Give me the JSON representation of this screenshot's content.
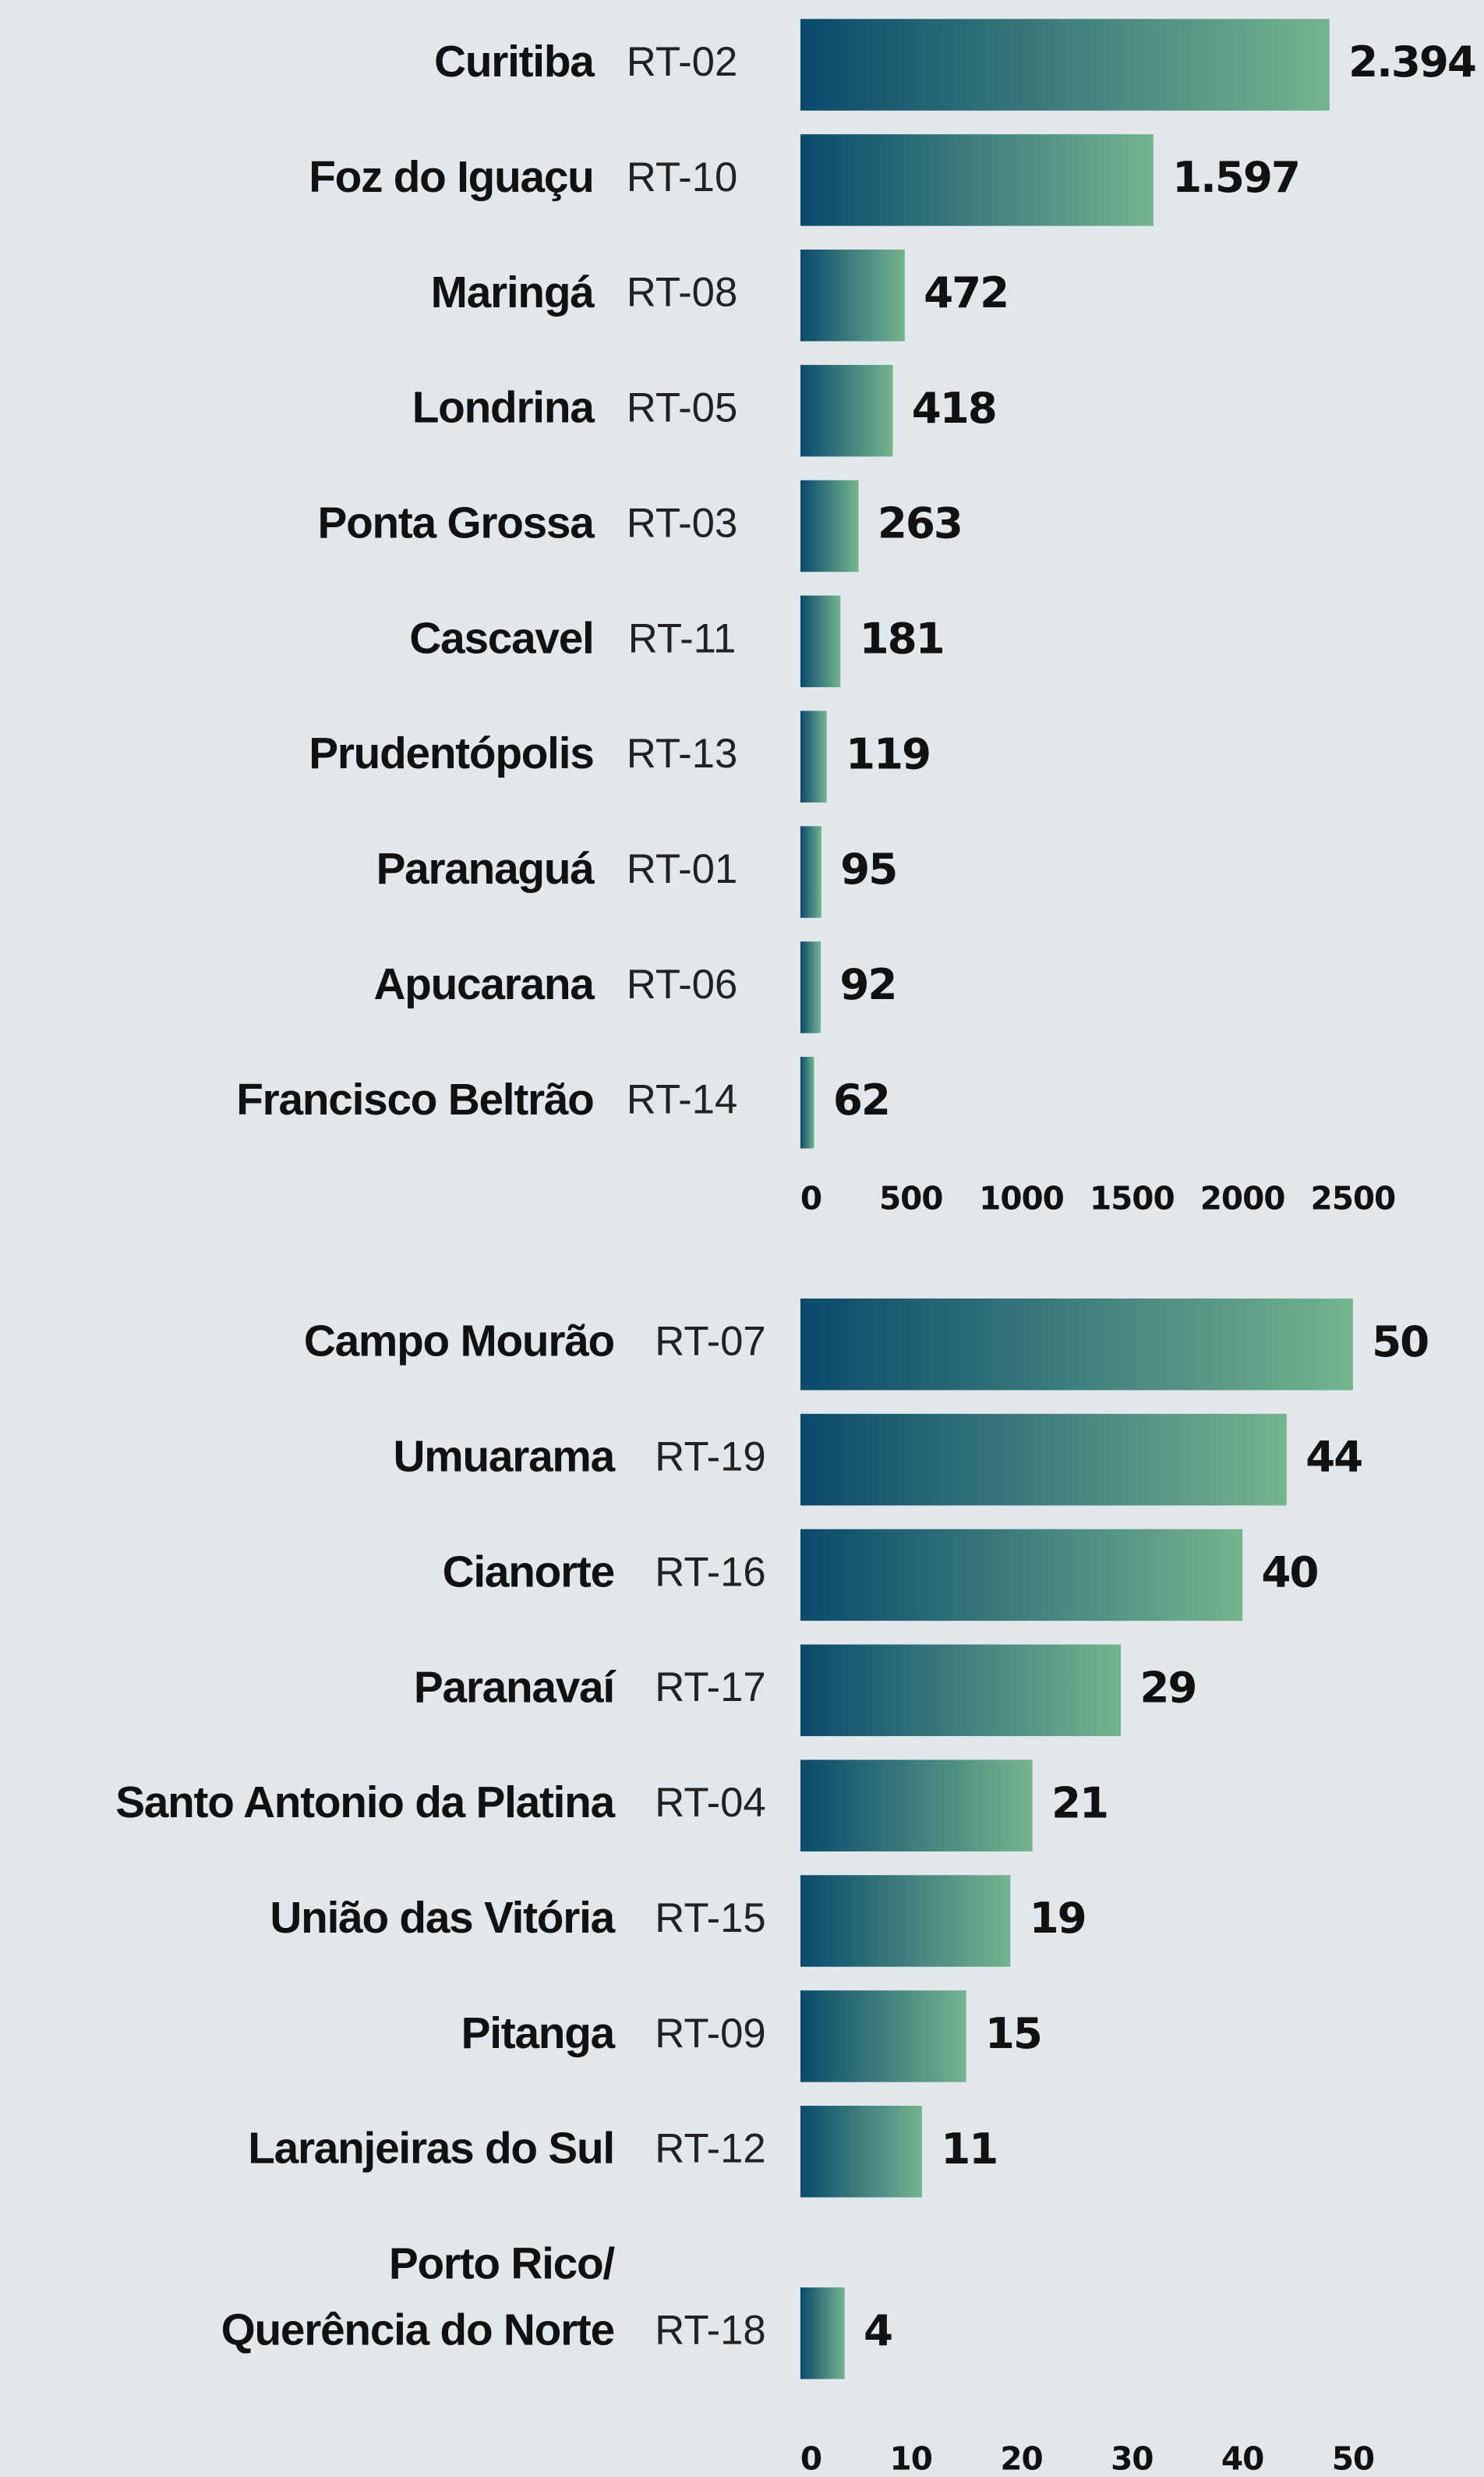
{
  "chart_data": [
    {
      "type": "bar",
      "orientation": "horizontal",
      "categories": [
        "Curitiba",
        "Foz do Iguaçu",
        "Maringá",
        "Londrina",
        "Ponta Grossa",
        "Cascavel",
        "Prudentópolis",
        "Paranaguá",
        "Apucarana",
        "Francisco Beltrão"
      ],
      "codes": [
        "RT-02",
        "RT-10",
        "RT-08",
        "RT-05",
        "RT-03",
        "RT-11",
        "RT-13",
        "RT-01",
        "RT-06",
        "RT-14"
      ],
      "values": [
        2394,
        1597,
        472,
        418,
        263,
        181,
        119,
        95,
        92,
        62
      ],
      "value_labels": [
        "2.394",
        "1.597",
        "472",
        "418",
        "263",
        "181",
        "119",
        "95",
        "92",
        "62"
      ],
      "color": [
        "#0a4a6b",
        "#74b48f"
      ],
      "xlim": [
        0,
        2500
      ],
      "xticks": [
        0,
        500,
        1000,
        1500,
        2000,
        2500
      ]
    },
    {
      "type": "bar",
      "orientation": "horizontal",
      "categories": [
        "Campo Mourão",
        "Umuarama",
        "Cianorte",
        "Paranavaí",
        "Santo Antonio da Platina",
        "União das Vitória",
        "Pitanga",
        "Laranjeiras do Sul",
        "Porto Rico/\nQuerência do Norte"
      ],
      "codes": [
        "RT-07",
        "RT-19",
        "RT-16",
        "RT-17",
        "RT-04",
        "RT-15",
        "RT-09",
        "RT-12",
        "RT-18"
      ],
      "values": [
        50,
        44,
        40,
        29,
        21,
        19,
        15,
        11,
        4
      ],
      "color": [
        "#0a4a6b",
        "#74b48f"
      ],
      "xlim": [
        0,
        50
      ],
      "xticks": [
        0,
        10,
        20,
        30,
        40,
        50
      ]
    }
  ]
}
